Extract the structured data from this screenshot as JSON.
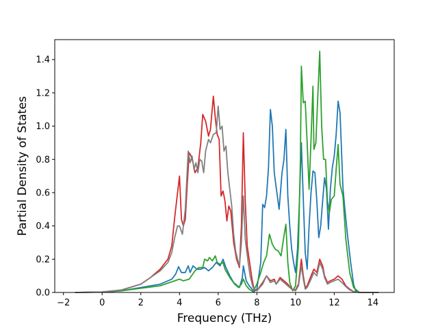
{
  "chart_data": {
    "type": "line",
    "title": "",
    "xlabel": "Frequency (THz)",
    "ylabel": "Partial Density of States",
    "xlim": [
      -2.45,
      15.1
    ],
    "ylim": [
      0.0,
      1.52
    ],
    "grid": false,
    "legend": "none",
    "xticks": [
      -2,
      0,
      2,
      4,
      6,
      8,
      10,
      12,
      14
    ],
    "xtick_labels": [
      "−2",
      "0",
      "2",
      "4",
      "6",
      "8",
      "10",
      "12",
      "14"
    ],
    "yticks": [
      0.0,
      0.2,
      0.4,
      0.6,
      0.8,
      1.0,
      1.2,
      1.4
    ],
    "ytick_labels": [
      "0.0",
      "0.2",
      "0.4",
      "0.6",
      "0.8",
      "1.0",
      "1.2",
      "1.4"
    ],
    "series": [
      {
        "color": "#1f77b4",
        "points": [
          [
            -1.4,
            0
          ],
          [
            0,
            0.002
          ],
          [
            1,
            0.01
          ],
          [
            2,
            0.03
          ],
          [
            3,
            0.05
          ],
          [
            3.6,
            0.08
          ],
          [
            3.8,
            0.11
          ],
          [
            3.95,
            0.155
          ],
          [
            4.1,
            0.12
          ],
          [
            4.3,
            0.12
          ],
          [
            4.45,
            0.16
          ],
          [
            4.55,
            0.12
          ],
          [
            4.7,
            0.16
          ],
          [
            4.9,
            0.14
          ],
          [
            5.1,
            0.14
          ],
          [
            5.3,
            0.15
          ],
          [
            5.5,
            0.13
          ],
          [
            5.7,
            0.15
          ],
          [
            5.9,
            0.18
          ],
          [
            6.1,
            0.16
          ],
          [
            6.25,
            0.2
          ],
          [
            6.4,
            0.15
          ],
          [
            6.6,
            0.1
          ],
          [
            6.8,
            0.06
          ],
          [
            7.0,
            0.04
          ],
          [
            7.1,
            0.03
          ],
          [
            7.25,
            0.09
          ],
          [
            7.3,
            0.16
          ],
          [
            7.45,
            0.07
          ],
          [
            7.6,
            0.04
          ],
          [
            7.75,
            0.02
          ],
          [
            7.85,
            0.005
          ],
          [
            8.0,
            0.02
          ],
          [
            8.2,
            0.18
          ],
          [
            8.3,
            0.53
          ],
          [
            8.4,
            0.51
          ],
          [
            8.5,
            0.58
          ],
          [
            8.6,
            0.75
          ],
          [
            8.7,
            1.1
          ],
          [
            8.8,
            1.0
          ],
          [
            8.9,
            0.72
          ],
          [
            9.0,
            0.63
          ],
          [
            9.15,
            0.5
          ],
          [
            9.3,
            0.72
          ],
          [
            9.4,
            0.8
          ],
          [
            9.5,
            0.98
          ],
          [
            9.6,
            0.58
          ],
          [
            9.7,
            0.4
          ],
          [
            9.8,
            0.26
          ],
          [
            9.9,
            0.18
          ],
          [
            10.0,
            0.12
          ],
          [
            10.1,
            0.26
          ],
          [
            10.2,
            0.55
          ],
          [
            10.3,
            0.9
          ],
          [
            10.4,
            0.56
          ],
          [
            10.5,
            0.24
          ],
          [
            10.6,
            0.14
          ],
          [
            10.7,
            0.4
          ],
          [
            10.8,
            0.6
          ],
          [
            10.9,
            0.73
          ],
          [
            11.0,
            0.72
          ],
          [
            11.1,
            0.55
          ],
          [
            11.2,
            0.33
          ],
          [
            11.3,
            0.4
          ],
          [
            11.4,
            0.55
          ],
          [
            11.5,
            0.69
          ],
          [
            11.6,
            0.62
          ],
          [
            11.7,
            0.38
          ],
          [
            11.8,
            0.62
          ],
          [
            11.9,
            0.75
          ],
          [
            12.0,
            0.82
          ],
          [
            12.1,
            0.95
          ],
          [
            12.2,
            1.15
          ],
          [
            12.3,
            1.08
          ],
          [
            12.45,
            0.63
          ],
          [
            12.55,
            0.5
          ],
          [
            12.7,
            0.33
          ],
          [
            12.85,
            0.18
          ],
          [
            13.0,
            0.05
          ],
          [
            13.1,
            0.01
          ],
          [
            13.3,
            0
          ],
          [
            14.3,
            0
          ]
        ]
      },
      {
        "color": "#2ca02c",
        "points": [
          [
            -1.4,
            0
          ],
          [
            0,
            0.002
          ],
          [
            1,
            0.01
          ],
          [
            2,
            0.025
          ],
          [
            3,
            0.04
          ],
          [
            3.5,
            0.06
          ],
          [
            4.0,
            0.08
          ],
          [
            4.2,
            0.07
          ],
          [
            4.5,
            0.08
          ],
          [
            4.8,
            0.13
          ],
          [
            5.0,
            0.15
          ],
          [
            5.2,
            0.15
          ],
          [
            5.3,
            0.2
          ],
          [
            5.45,
            0.19
          ],
          [
            5.55,
            0.21
          ],
          [
            5.7,
            0.19
          ],
          [
            5.85,
            0.22
          ],
          [
            5.95,
            0.18
          ],
          [
            6.1,
            0.17
          ],
          [
            6.25,
            0.18
          ],
          [
            6.35,
            0.14
          ],
          [
            6.6,
            0.09
          ],
          [
            6.85,
            0.05
          ],
          [
            7.05,
            0.03
          ],
          [
            7.2,
            0.05
          ],
          [
            7.3,
            0.08
          ],
          [
            7.45,
            0.04
          ],
          [
            7.6,
            0.02
          ],
          [
            7.8,
            0.005
          ],
          [
            8.0,
            0.05
          ],
          [
            8.2,
            0.12
          ],
          [
            8.35,
            0.18
          ],
          [
            8.5,
            0.22
          ],
          [
            8.65,
            0.35
          ],
          [
            8.8,
            0.29
          ],
          [
            8.95,
            0.26
          ],
          [
            9.1,
            0.25
          ],
          [
            9.25,
            0.22
          ],
          [
            9.4,
            0.34
          ],
          [
            9.5,
            0.41
          ],
          [
            9.6,
            0.18
          ],
          [
            9.7,
            0.06
          ],
          [
            9.85,
            0.01
          ],
          [
            10.0,
            0.04
          ],
          [
            10.15,
            0.28
          ],
          [
            10.25,
            0.8
          ],
          [
            10.3,
            1.36
          ],
          [
            10.4,
            1.14
          ],
          [
            10.5,
            1.15
          ],
          [
            10.6,
            0.9
          ],
          [
            10.7,
            0.62
          ],
          [
            10.8,
            0.92
          ],
          [
            10.9,
            1.24
          ],
          [
            10.95,
            0.86
          ],
          [
            11.05,
            0.9
          ],
          [
            11.15,
            1.18
          ],
          [
            11.25,
            1.45
          ],
          [
            11.35,
            1.0
          ],
          [
            11.45,
            0.8
          ],
          [
            11.55,
            0.8
          ],
          [
            11.65,
            0.55
          ],
          [
            11.75,
            0.48
          ],
          [
            11.85,
            0.56
          ],
          [
            12.0,
            0.58
          ],
          [
            12.1,
            0.74
          ],
          [
            12.2,
            0.89
          ],
          [
            12.3,
            0.65
          ],
          [
            12.45,
            0.58
          ],
          [
            12.6,
            0.32
          ],
          [
            12.8,
            0.12
          ],
          [
            13.0,
            0.03
          ],
          [
            13.3,
            0
          ],
          [
            14.3,
            0
          ]
        ]
      },
      {
        "color": "#d62728",
        "points": [
          [
            -1.4,
            0
          ],
          [
            0,
            0.003
          ],
          [
            1,
            0.015
          ],
          [
            2,
            0.05
          ],
          [
            2.5,
            0.09
          ],
          [
            3.0,
            0.14
          ],
          [
            3.4,
            0.2
          ],
          [
            3.6,
            0.28
          ],
          [
            3.75,
            0.45
          ],
          [
            3.9,
            0.6
          ],
          [
            4.0,
            0.7
          ],
          [
            4.1,
            0.44
          ],
          [
            4.2,
            0.4
          ],
          [
            4.3,
            0.44
          ],
          [
            4.4,
            0.65
          ],
          [
            4.5,
            0.84
          ],
          [
            4.6,
            0.82
          ],
          [
            4.7,
            0.78
          ],
          [
            4.8,
            0.72
          ],
          [
            4.95,
            0.75
          ],
          [
            5.1,
            0.9
          ],
          [
            5.2,
            1.07
          ],
          [
            5.35,
            1.03
          ],
          [
            5.5,
            0.94
          ],
          [
            5.6,
            0.98
          ],
          [
            5.75,
            1.18
          ],
          [
            5.85,
            1.05
          ],
          [
            5.95,
            0.95
          ],
          [
            6.05,
            0.92
          ],
          [
            6.15,
            0.58
          ],
          [
            6.25,
            0.61
          ],
          [
            6.35,
            0.55
          ],
          [
            6.45,
            0.43
          ],
          [
            6.55,
            0.52
          ],
          [
            6.65,
            0.49
          ],
          [
            6.8,
            0.3
          ],
          [
            6.95,
            0.2
          ],
          [
            7.1,
            0.15
          ],
          [
            7.2,
            0.4
          ],
          [
            7.3,
            0.96
          ],
          [
            7.4,
            0.55
          ],
          [
            7.5,
            0.28
          ],
          [
            7.6,
            0.2
          ],
          [
            7.75,
            0.08
          ],
          [
            7.85,
            0.02
          ],
          [
            8.0,
            0.01
          ],
          [
            8.3,
            0.06
          ],
          [
            8.5,
            0.1
          ],
          [
            8.7,
            0.07
          ],
          [
            8.9,
            0.08
          ],
          [
            9.0,
            0.05
          ],
          [
            9.2,
            0.09
          ],
          [
            9.4,
            0.07
          ],
          [
            9.6,
            0.05
          ],
          [
            9.8,
            0.02
          ],
          [
            10.0,
            0.015
          ],
          [
            10.15,
            0.05
          ],
          [
            10.3,
            0.2
          ],
          [
            10.4,
            0.1
          ],
          [
            10.5,
            0.03
          ],
          [
            10.6,
            0.04
          ],
          [
            10.8,
            0.1
          ],
          [
            10.95,
            0.14
          ],
          [
            11.1,
            0.12
          ],
          [
            11.25,
            0.2
          ],
          [
            11.4,
            0.16
          ],
          [
            11.5,
            0.1
          ],
          [
            11.65,
            0.06
          ],
          [
            11.8,
            0.07
          ],
          [
            12.0,
            0.08
          ],
          [
            12.2,
            0.1
          ],
          [
            12.4,
            0.08
          ],
          [
            12.6,
            0.04
          ],
          [
            12.8,
            0.02
          ],
          [
            13.0,
            0.005
          ],
          [
            13.3,
            0
          ],
          [
            14.3,
            0
          ]
        ]
      },
      {
        "color": "#7f7f7f",
        "points": [
          [
            -1.4,
            0
          ],
          [
            0,
            0.003
          ],
          [
            1,
            0.015
          ],
          [
            2,
            0.05
          ],
          [
            2.5,
            0.09
          ],
          [
            3.0,
            0.13
          ],
          [
            3.4,
            0.18
          ],
          [
            3.6,
            0.24
          ],
          [
            3.75,
            0.33
          ],
          [
            3.9,
            0.4
          ],
          [
            4.0,
            0.4
          ],
          [
            4.15,
            0.35
          ],
          [
            4.3,
            0.5
          ],
          [
            4.35,
            0.62
          ],
          [
            4.45,
            0.85
          ],
          [
            4.55,
            0.78
          ],
          [
            4.65,
            0.82
          ],
          [
            4.75,
            0.74
          ],
          [
            4.85,
            0.78
          ],
          [
            4.95,
            0.72
          ],
          [
            5.05,
            0.8
          ],
          [
            5.15,
            0.79
          ],
          [
            5.25,
            0.72
          ],
          [
            5.35,
            0.85
          ],
          [
            5.5,
            0.92
          ],
          [
            5.6,
            0.9
          ],
          [
            5.75,
            0.95
          ],
          [
            5.9,
            0.96
          ],
          [
            6.0,
            1.12
          ],
          [
            6.1,
            0.98
          ],
          [
            6.2,
            1.0
          ],
          [
            6.3,
            0.85
          ],
          [
            6.4,
            0.88
          ],
          [
            6.5,
            0.72
          ],
          [
            6.6,
            0.62
          ],
          [
            6.7,
            0.52
          ],
          [
            6.8,
            0.35
          ],
          [
            6.9,
            0.25
          ],
          [
            7.0,
            0.2
          ],
          [
            7.1,
            0.16
          ],
          [
            7.2,
            0.3
          ],
          [
            7.3,
            0.58
          ],
          [
            7.4,
            0.32
          ],
          [
            7.55,
            0.18
          ],
          [
            7.65,
            0.1
          ],
          [
            7.8,
            0.03
          ],
          [
            8.0,
            0.01
          ],
          [
            8.3,
            0.05
          ],
          [
            8.5,
            0.1
          ],
          [
            8.7,
            0.06
          ],
          [
            8.9,
            0.07
          ],
          [
            9.0,
            0.05
          ],
          [
            9.2,
            0.08
          ],
          [
            9.4,
            0.06
          ],
          [
            9.6,
            0.04
          ],
          [
            9.8,
            0.02
          ],
          [
            10.0,
            0.01
          ],
          [
            10.15,
            0.04
          ],
          [
            10.3,
            0.16
          ],
          [
            10.4,
            0.08
          ],
          [
            10.5,
            0.02
          ],
          [
            10.6,
            0.03
          ],
          [
            10.8,
            0.08
          ],
          [
            10.95,
            0.12
          ],
          [
            11.1,
            0.1
          ],
          [
            11.25,
            0.18
          ],
          [
            11.4,
            0.14
          ],
          [
            11.5,
            0.09
          ],
          [
            11.65,
            0.05
          ],
          [
            11.8,
            0.06
          ],
          [
            12.0,
            0.07
          ],
          [
            12.2,
            0.08
          ],
          [
            12.4,
            0.06
          ],
          [
            12.6,
            0.035
          ],
          [
            12.8,
            0.015
          ],
          [
            13.0,
            0.005
          ],
          [
            13.3,
            0
          ],
          [
            14.3,
            0
          ]
        ]
      }
    ]
  }
}
